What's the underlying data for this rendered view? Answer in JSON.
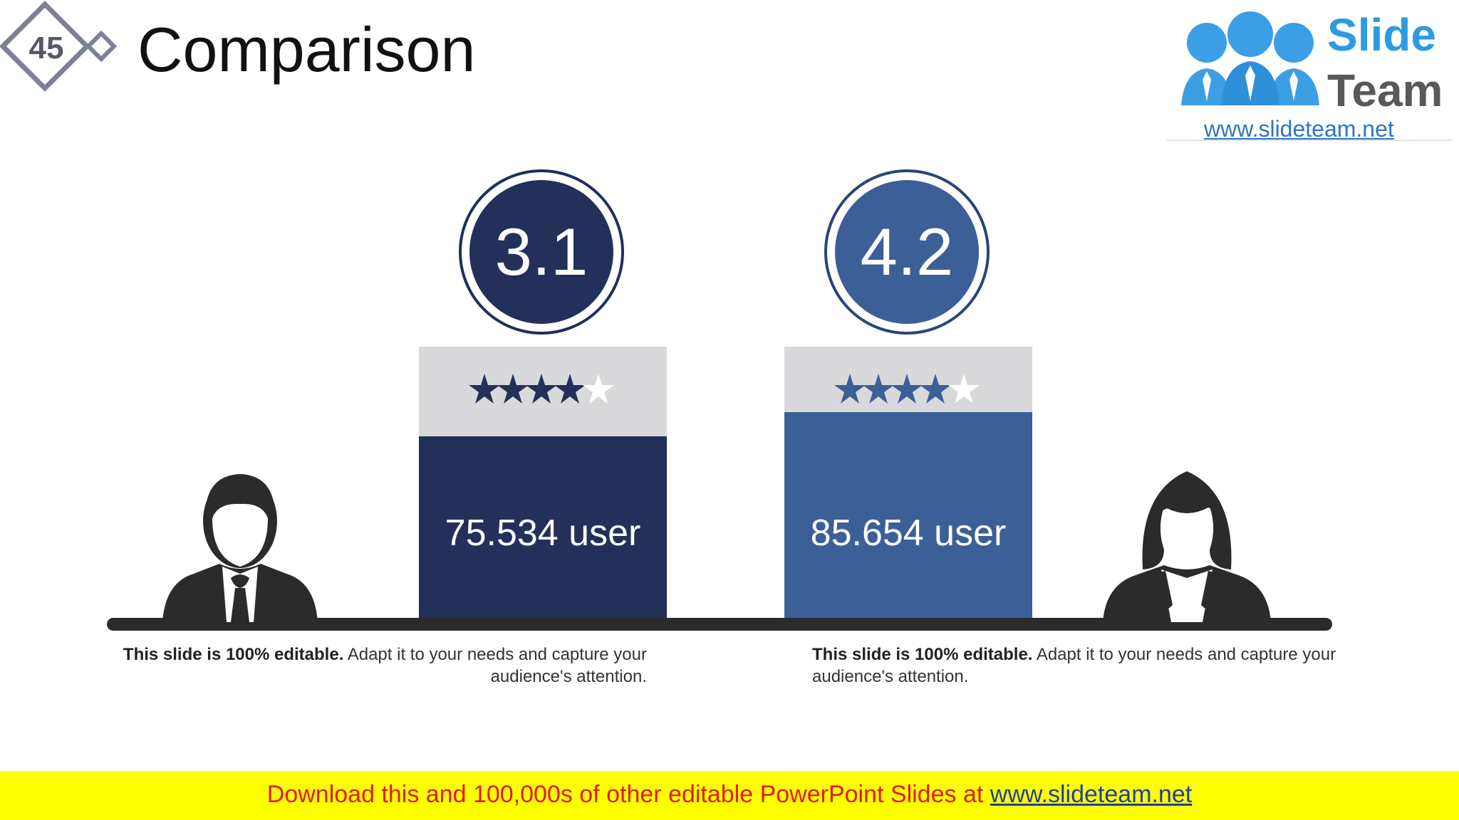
{
  "slide": {
    "number": "45",
    "title": "Comparison"
  },
  "logo": {
    "word1": "Slide",
    "word2": "Team",
    "url": "www.slideteam.net"
  },
  "colors": {
    "dark_navy": "#22305a",
    "mid_blue": "#3d5f98",
    "star_band": "#d9d9db",
    "footer_bg": "#ffff00",
    "footer_text": "#e01b1b"
  },
  "comparison": [
    {
      "rating": "3.1",
      "stars_filled": 4,
      "stars_total": 5,
      "users": "75.534 user",
      "person_icon": "businessman-icon",
      "caption_bold": "This slide is 100% editable.",
      "caption_text": " Adapt it to your needs and capture your audience's attention."
    },
    {
      "rating": "4.2",
      "stars_filled": 4,
      "stars_total": 5,
      "users": "85.654 user",
      "person_icon": "businesswoman-icon",
      "caption_bold": "This slide is 100% editable.",
      "caption_text": " Adapt it to your needs and capture your audience's attention."
    }
  ],
  "footer": {
    "text": "Download this and 100,000s of other editable PowerPoint Slides at ",
    "link": "www.slideteam.net"
  }
}
